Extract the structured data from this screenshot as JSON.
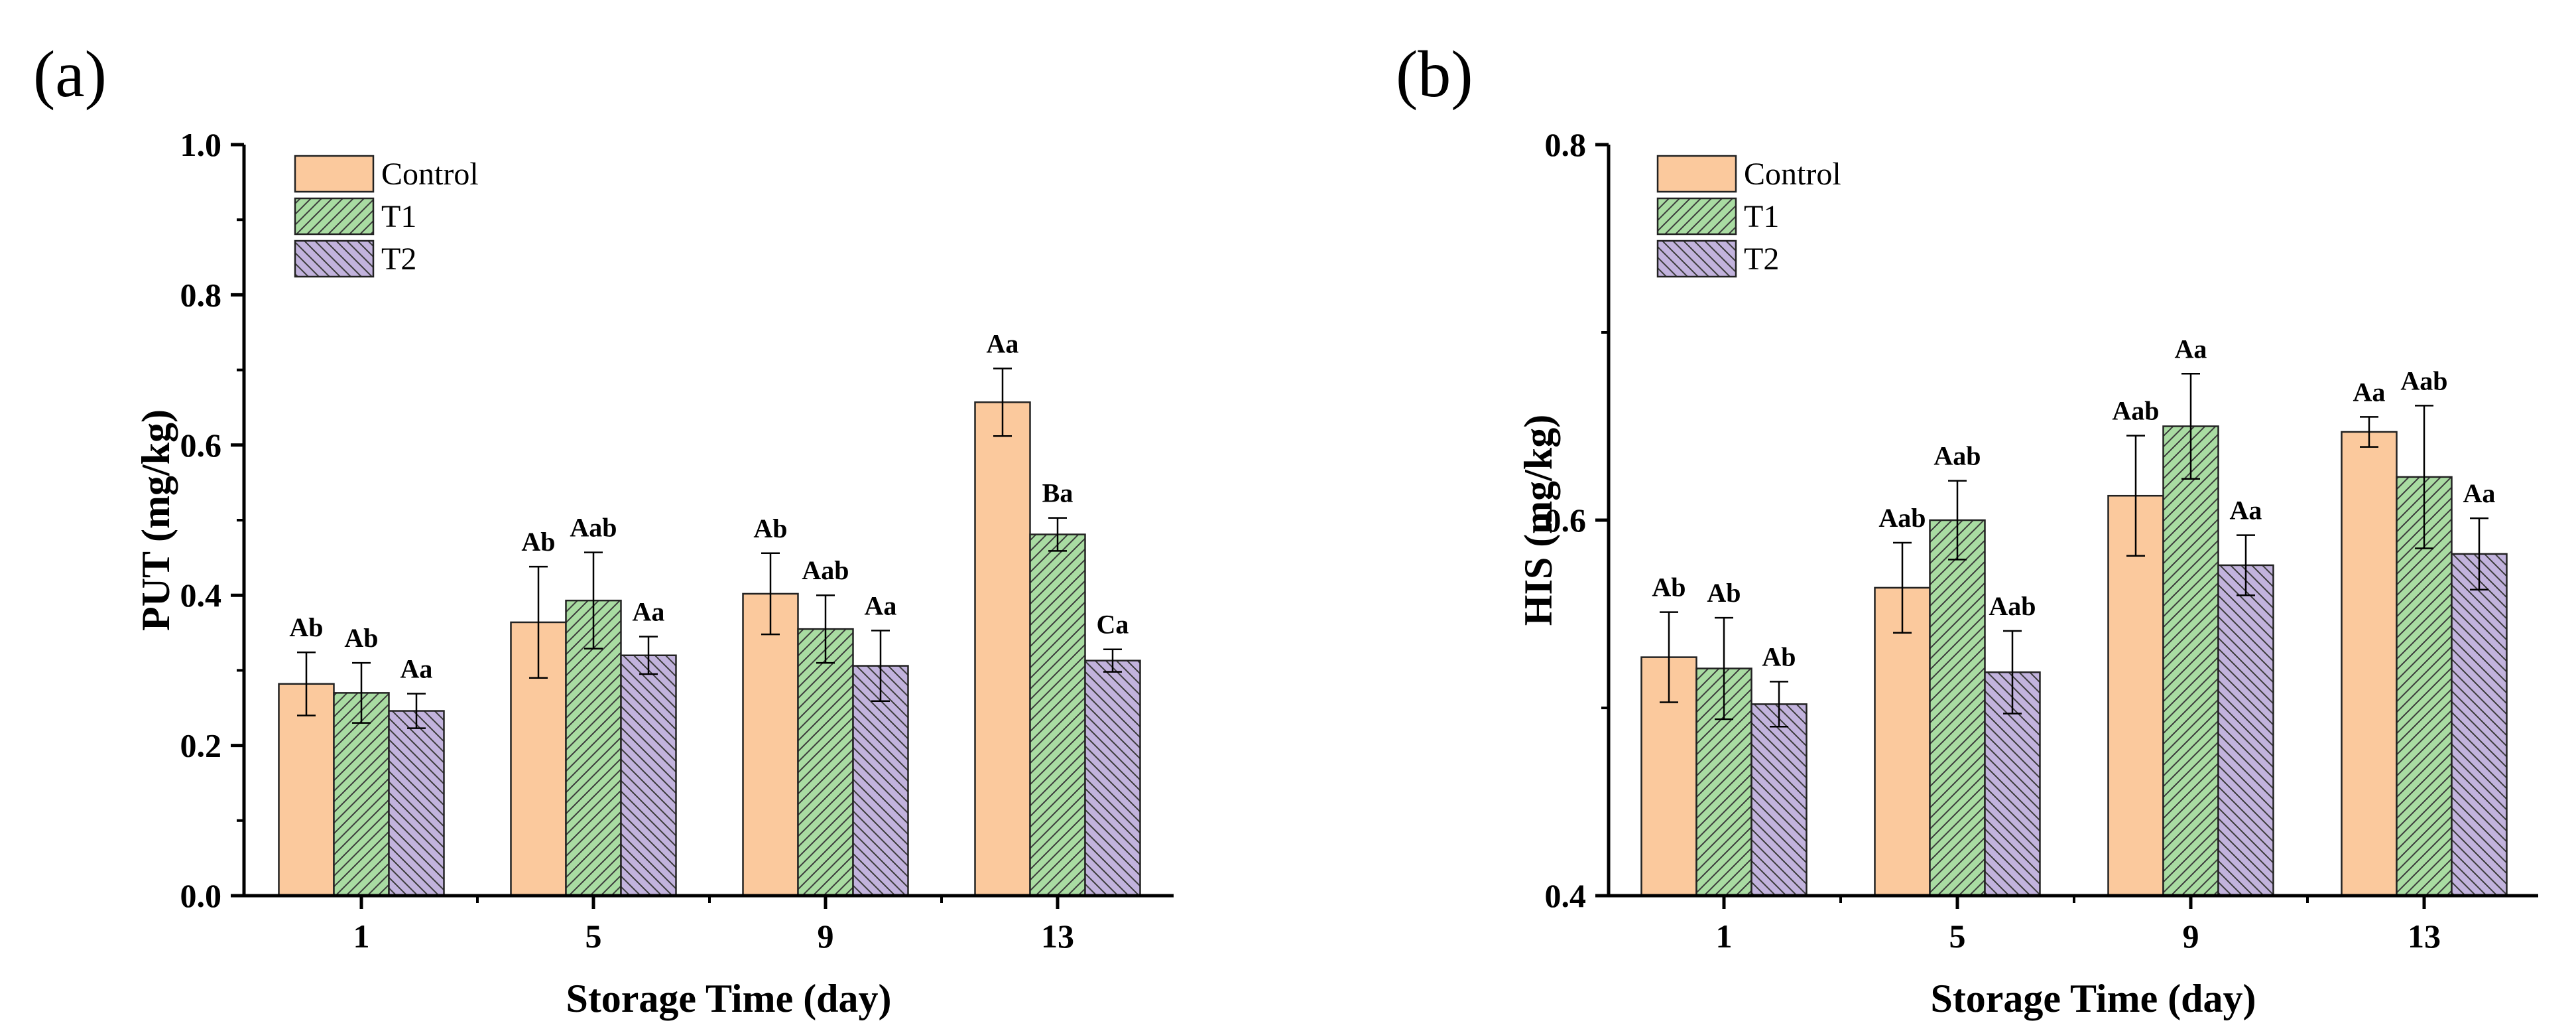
{
  "chart_data": [
    {
      "type": "bar",
      "panel_label": "(a)",
      "categories": [
        "1",
        "5",
        "9",
        "13"
      ],
      "series": [
        {
          "name": "Control",
          "color": "#fbc99d",
          "pattern": "none",
          "values": [
            0.282,
            0.364,
            0.402,
            0.657
          ],
          "errors": [
            0.042,
            0.074,
            0.054,
            0.045
          ],
          "labels": [
            "Ab",
            "Ab",
            "Ab",
            "Aa"
          ]
        },
        {
          "name": "T1",
          "color": "#a9dca2",
          "pattern": "forward-hatch",
          "values": [
            0.27,
            0.393,
            0.355,
            0.481
          ],
          "errors": [
            0.04,
            0.064,
            0.045,
            0.022
          ],
          "labels": [
            "Ab",
            "Aab",
            "Aab",
            "Ba"
          ]
        },
        {
          "name": "T2",
          "color": "#c2b3dd",
          "pattern": "back-hatch",
          "values": [
            0.246,
            0.32,
            0.306,
            0.313
          ],
          "errors": [
            0.023,
            0.025,
            0.047,
            0.015
          ],
          "labels": [
            "Aa",
            "Aa",
            "Aa",
            "Ca"
          ]
        }
      ],
      "xlabel": "Storage Time (day)",
      "ylabel": "PUT (mg/kg)",
      "ylim": [
        0,
        1.0
      ],
      "yticks": [
        0.0,
        0.2,
        0.4,
        0.6,
        0.8,
        1.0
      ],
      "ytick_labels": [
        "0.0",
        "0.2",
        "0.4",
        "0.6",
        "0.8",
        "1.0"
      ],
      "legend_position": "top-left",
      "grid": false
    },
    {
      "type": "bar",
      "panel_label": "(b)",
      "categories": [
        "1",
        "5",
        "9",
        "13"
      ],
      "series": [
        {
          "name": "Control",
          "color": "#fbc99d",
          "pattern": "none",
          "values": [
            0.527,
            0.564,
            0.613,
            0.647
          ],
          "errors": [
            0.024,
            0.024,
            0.032,
            0.008
          ],
          "labels": [
            "Ab",
            "Aab",
            "Aab",
            "Aa"
          ]
        },
        {
          "name": "T1",
          "color": "#a9dca2",
          "pattern": "forward-hatch",
          "values": [
            0.521,
            0.6,
            0.65,
            0.623
          ],
          "errors": [
            0.027,
            0.021,
            0.028,
            0.038
          ],
          "labels": [
            "Ab",
            "Aab",
            "Aa",
            "Aab"
          ]
        },
        {
          "name": "T2",
          "color": "#c2b3dd",
          "pattern": "back-hatch",
          "values": [
            0.502,
            0.519,
            0.576,
            0.582
          ],
          "errors": [
            0.012,
            0.022,
            0.016,
            0.019
          ],
          "labels": [
            "Ab",
            "Aab",
            "Aa",
            "Aa"
          ]
        }
      ],
      "xlabel": "Storage Time (day)",
      "ylabel": "HIS (mg/kg)",
      "ylim": [
        0.4,
        0.8
      ],
      "yticks": [
        0.4,
        0.6,
        0.8
      ],
      "ytick_labels": [
        "0.4",
        "0.6",
        "0.8"
      ],
      "legend_position": "top-left",
      "grid": false
    }
  ]
}
